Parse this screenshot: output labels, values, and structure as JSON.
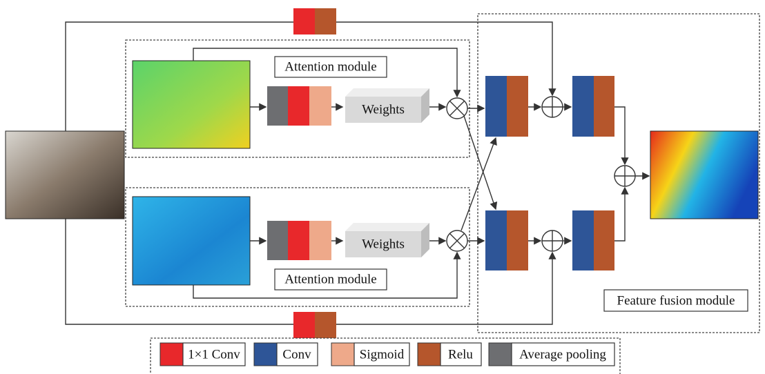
{
  "modules": [
    {
      "label": "Attention module",
      "weights": "Weights"
    },
    {
      "label": "Attention module",
      "weights": "Weights"
    }
  ],
  "fusion": {
    "label": "Feature fusion module"
  },
  "legend": [
    {
      "label": "1×1 Conv"
    },
    {
      "label": "Conv"
    },
    {
      "label": "Sigmoid"
    },
    {
      "label": "Relu"
    },
    {
      "label": "Average pooling"
    }
  ]
}
